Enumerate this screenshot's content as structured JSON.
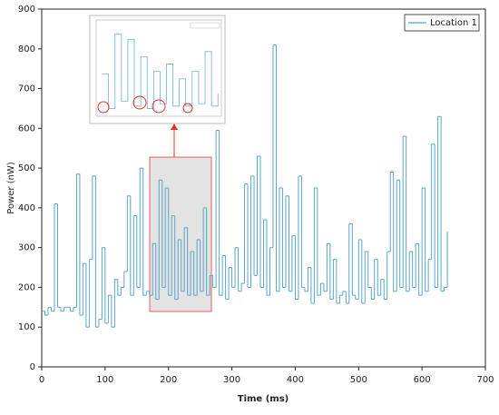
{
  "chart_data": {
    "type": "step",
    "xlabel": "Time (ms)",
    "ylabel": "Power (nW)",
    "xlim": [
      0,
      700
    ],
    "xticks": [
      0,
      100,
      200,
      300,
      400,
      500,
      600,
      700
    ],
    "ylim": [
      0,
      900
    ],
    "yticks": [
      0,
      100,
      200,
      300,
      400,
      500,
      600,
      700,
      800,
      900
    ],
    "legend": "top-right",
    "series": [
      {
        "name": "Location 1",
        "color": "#5aa5c8",
        "x": [
          0,
          5,
          10,
          15,
          20,
          25,
          30,
          35,
          40,
          45,
          50,
          55,
          60,
          65,
          70,
          75,
          80,
          85,
          90,
          95,
          100,
          105,
          110,
          115,
          120,
          125,
          130,
          135,
          140,
          145,
          150,
          155,
          160,
          165,
          170,
          175,
          180,
          185,
          190,
          195,
          200,
          205,
          210,
          215,
          220,
          225,
          230,
          235,
          240,
          245,
          250,
          255,
          260,
          265,
          270,
          275,
          280,
          285,
          290,
          295,
          300,
          305,
          310,
          315,
          320,
          325,
          330,
          335,
          340,
          345,
          350,
          355,
          360,
          365,
          370,
          375,
          380,
          385,
          390,
          395,
          400,
          405,
          410,
          415,
          420,
          425,
          430,
          435,
          440,
          445,
          450,
          455,
          460,
          465,
          470,
          475,
          480,
          485,
          490,
          495,
          500,
          505,
          510,
          515,
          520,
          525,
          530,
          535,
          540,
          545,
          550,
          555,
          560,
          565,
          570,
          575,
          580,
          585,
          590,
          595,
          600,
          605,
          610,
          615,
          620,
          625,
          630,
          635,
          640
        ],
        "values": [
          140,
          130,
          150,
          140,
          410,
          150,
          140,
          150,
          150,
          140,
          150,
          485,
          130,
          260,
          100,
          270,
          480,
          100,
          120,
          300,
          110,
          180,
          100,
          220,
          180,
          200,
          240,
          430,
          180,
          380,
          200,
          500,
          180,
          190,
          180,
          310,
          170,
          470,
          200,
          450,
          180,
          380,
          170,
          320,
          190,
          350,
          180,
          290,
          180,
          320,
          190,
          400,
          180,
          230,
          200,
          595,
          180,
          280,
          170,
          250,
          200,
          300,
          190,
          210,
          460,
          200,
          480,
          230,
          530,
          200,
          370,
          180,
          300,
          810,
          190,
          450,
          200,
          430,
          190,
          330,
          170,
          480,
          200,
          190,
          250,
          160,
          450,
          180,
          210,
          190,
          310,
          170,
          270,
          160,
          180,
          190,
          160,
          360,
          180,
          170,
          320,
          160,
          290,
          200,
          170,
          270,
          180,
          220,
          170,
          290,
          490,
          190,
          470,
          200,
          580,
          190,
          290,
          200,
          310,
          180,
          450,
          190,
          270,
          560,
          200,
          630,
          190,
          200,
          340
        ]
      }
    ]
  }
}
